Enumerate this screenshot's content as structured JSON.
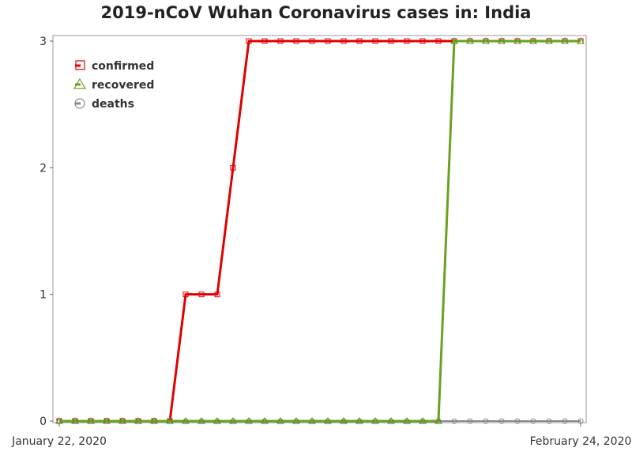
{
  "chart_data": {
    "type": "line",
    "title": "2019-nCoV Wuhan Coronavirus cases in: India",
    "xlabel": "",
    "ylabel": "",
    "x_tick_labels": [
      "January 22, 2020",
      "February 24, 2020"
    ],
    "x": [
      "2020-01-22",
      "2020-01-23",
      "2020-01-24",
      "2020-01-25",
      "2020-01-26",
      "2020-01-27",
      "2020-01-28",
      "2020-01-29",
      "2020-01-30",
      "2020-01-31",
      "2020-02-01",
      "2020-02-02",
      "2020-02-03",
      "2020-02-04",
      "2020-02-05",
      "2020-02-06",
      "2020-02-07",
      "2020-02-08",
      "2020-02-09",
      "2020-02-10",
      "2020-02-11",
      "2020-02-12",
      "2020-02-13",
      "2020-02-14",
      "2020-02-15",
      "2020-02-16",
      "2020-02-17",
      "2020-02-18",
      "2020-02-19",
      "2020-02-20",
      "2020-02-21",
      "2020-02-22",
      "2020-02-23",
      "2020-02-24"
    ],
    "ylim": [
      0,
      3
    ],
    "yticks": [
      0,
      1,
      2,
      3
    ],
    "grid": false,
    "legend_position": "top-left",
    "series": [
      {
        "name": "confirmed",
        "color": "#e00000",
        "marker": "square",
        "values": [
          0,
          0,
          0,
          0,
          0,
          0,
          0,
          0,
          1,
          1,
          1,
          2,
          3,
          3,
          3,
          3,
          3,
          3,
          3,
          3,
          3,
          3,
          3,
          3,
          3,
          3,
          3,
          3,
          3,
          3,
          3,
          3,
          3,
          3
        ]
      },
      {
        "name": "recovered",
        "color": "#6aa121",
        "marker": "triangle",
        "values": [
          0,
          0,
          0,
          0,
          0,
          0,
          0,
          0,
          0,
          0,
          0,
          0,
          0,
          0,
          0,
          0,
          0,
          0,
          0,
          0,
          0,
          0,
          0,
          0,
          0,
          3,
          3,
          3,
          3,
          3,
          3,
          3,
          3,
          3
        ]
      },
      {
        "name": "deaths",
        "color": "#888888",
        "marker": "circle",
        "values": [
          0,
          0,
          0,
          0,
          0,
          0,
          0,
          0,
          0,
          0,
          0,
          0,
          0,
          0,
          0,
          0,
          0,
          0,
          0,
          0,
          0,
          0,
          0,
          0,
          0,
          0,
          0,
          0,
          0,
          0,
          0,
          0,
          0,
          0
        ]
      }
    ]
  }
}
